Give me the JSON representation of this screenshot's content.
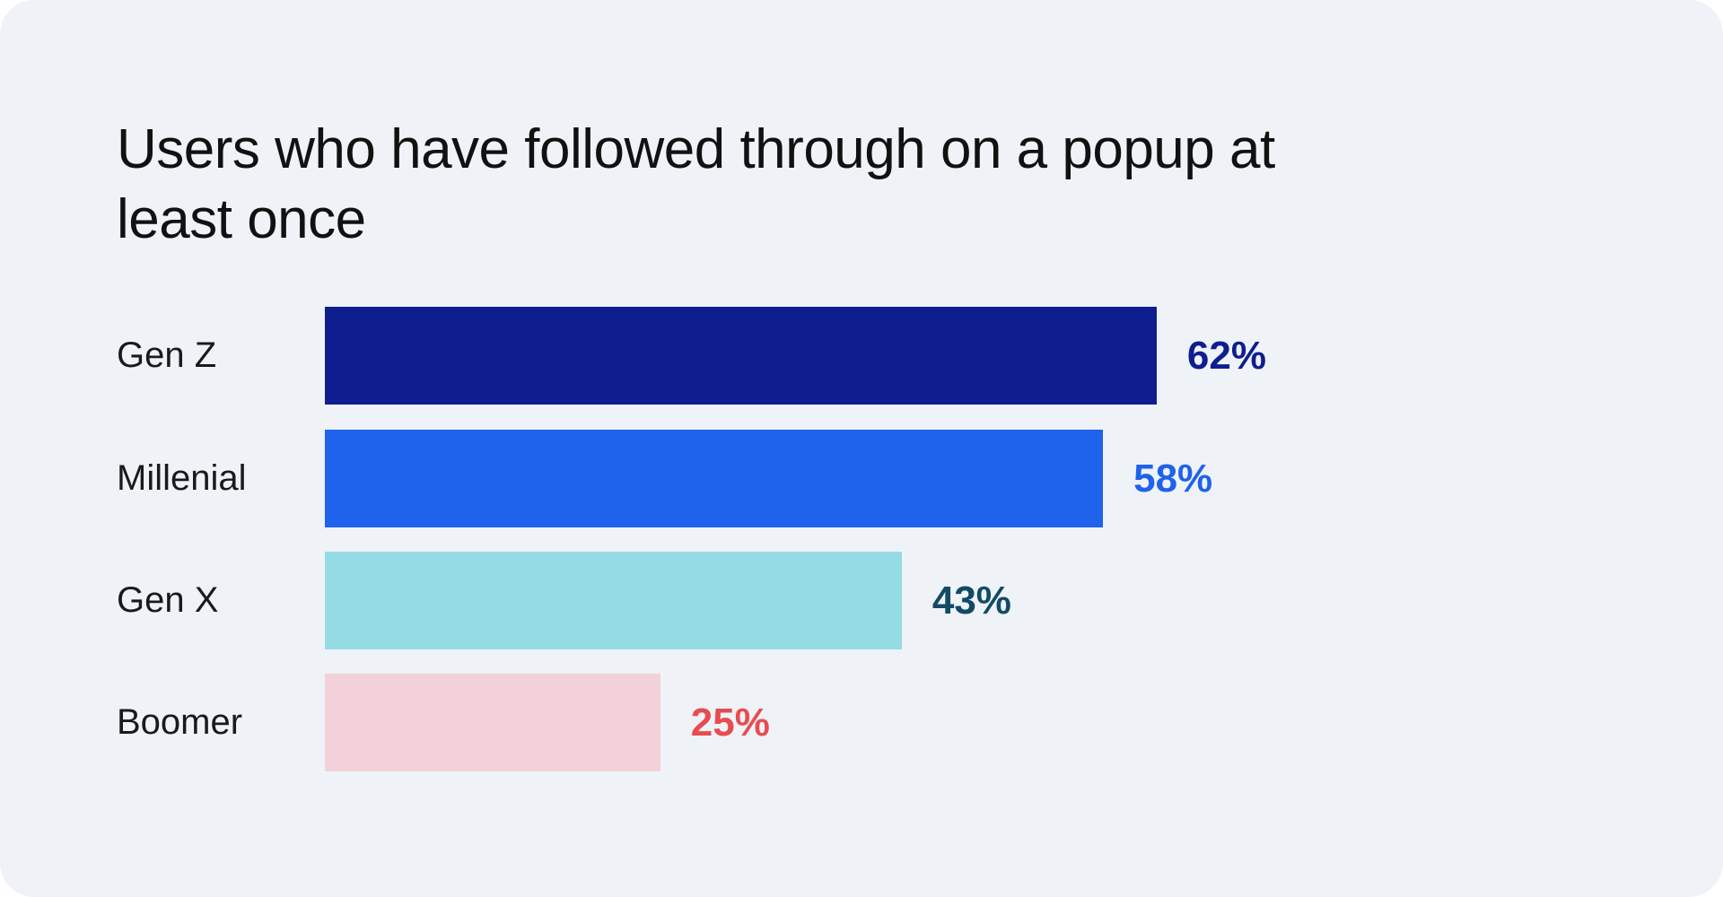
{
  "chart_data": {
    "type": "bar",
    "orientation": "horizontal",
    "title": "Users who have followed through on a popup at least once",
    "categories": [
      "Gen Z",
      "Millenial",
      "Gen X",
      "Boomer"
    ],
    "values": [
      62,
      58,
      43,
      25
    ],
    "value_labels": [
      "62%",
      "58%",
      "43%",
      "25%"
    ],
    "unit": "%",
    "xlim": [
      0,
      100
    ],
    "grid": false,
    "legend": "none",
    "bar_colors": [
      "#0f1e8f",
      "#1f62ec",
      "#94dbe4",
      "#f2d2d8"
    ],
    "label_colors": [
      "#0f1e8f",
      "#1f62ec",
      "#134a66",
      "#e84c4f"
    ]
  }
}
